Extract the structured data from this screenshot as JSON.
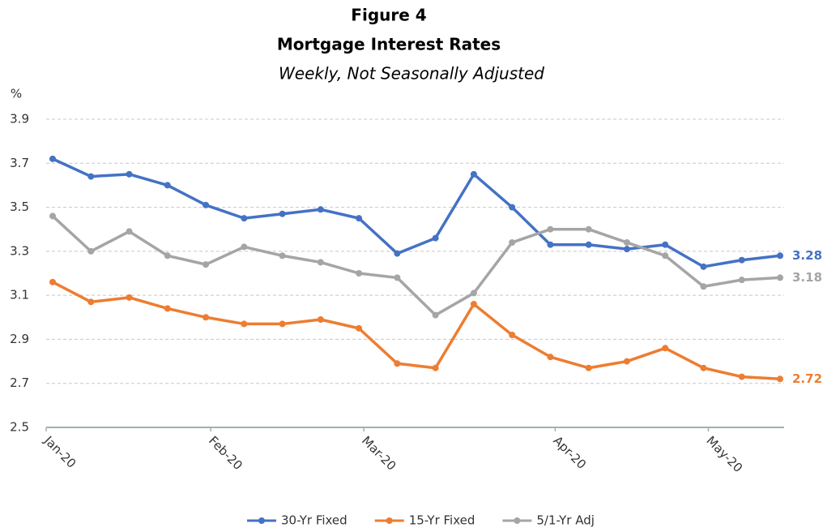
{
  "chart_data": {
    "type": "line",
    "title": "Figure 4",
    "subtitle": "Mortgage Interest Rates",
    "note": "Weekly, Not Seasonally Adjusted",
    "y_label": "%",
    "categories": [
      "Jan-20",
      null,
      null,
      null,
      "Feb-20",
      null,
      null,
      null,
      "Mar-20",
      null,
      null,
      null,
      null,
      "Apr-20",
      null,
      null,
      null,
      "May-20",
      null,
      null
    ],
    "series": [
      {
        "name": "30-Yr Fixed",
        "color": "#4472c4",
        "values": [
          3.72,
          3.64,
          3.65,
          3.6,
          3.51,
          3.45,
          3.47,
          3.49,
          3.45,
          3.29,
          3.36,
          3.65,
          3.5,
          3.33,
          3.33,
          3.31,
          3.33,
          3.23,
          3.26,
          3.28
        ]
      },
      {
        "name": "15-Yr Fixed",
        "color": "#ed7d31",
        "values": [
          3.16,
          3.07,
          3.09,
          3.04,
          3.0,
          2.97,
          2.97,
          2.99,
          2.95,
          2.79,
          2.77,
          3.06,
          2.92,
          2.82,
          2.77,
          2.8,
          2.86,
          2.77,
          2.73,
          2.72
        ]
      },
      {
        "name": "5/1-Yr Adj",
        "color": "#a5a5a5",
        "values": [
          3.46,
          3.3,
          3.39,
          3.28,
          3.24,
          3.32,
          3.28,
          3.25,
          3.2,
          3.18,
          3.01,
          3.11,
          3.34,
          3.4,
          3.4,
          3.34,
          3.28,
          3.14,
          3.17,
          3.18
        ]
      }
    ],
    "ylim": [
      2.5,
      3.9
    ],
    "yticks": [
      2.5,
      2.7,
      2.9,
      3.1,
      3.3,
      3.5,
      3.7,
      3.9
    ],
    "grid": true,
    "label_last": true,
    "legend": "bottom"
  }
}
